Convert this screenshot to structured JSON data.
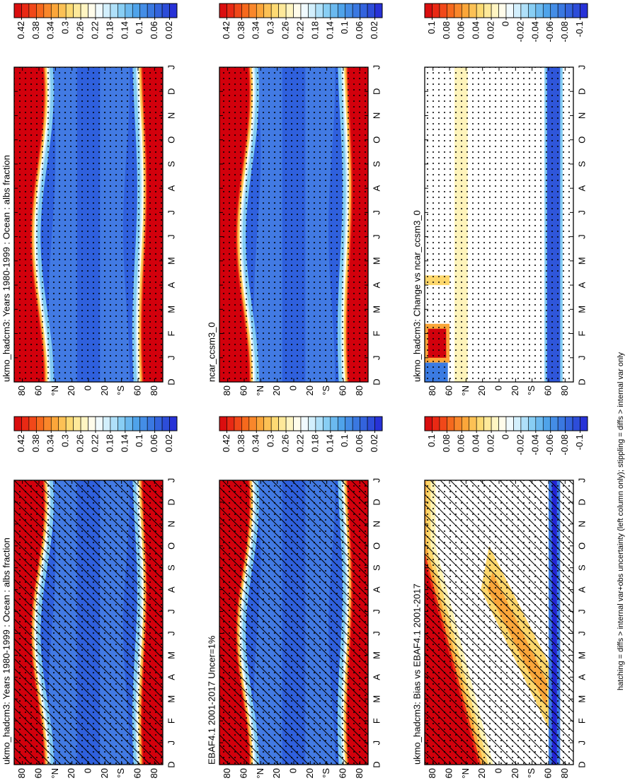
{
  "chart_data": [
    {
      "type": "contour",
      "title": "ukmo_hadcm3: Years 1980-1999 : Ocean : albs fraction",
      "categories": [
        "D",
        "J",
        "F",
        "M",
        "A",
        "M",
        "J",
        "J",
        "A",
        "S",
        "O",
        "N",
        "D",
        "J"
      ],
      "ylim": [
        -90,
        90
      ],
      "yticks": [
        80,
        60,
        {
          "value": 40,
          "label": "°N"
        },
        20,
        0,
        {
          "value": -20,
          "label": "20"
        },
        {
          "value": -40,
          "label": "°S"
        },
        {
          "value": -60,
          "label": "60"
        },
        {
          "value": -80,
          "label": "80"
        }
      ],
      "clim": [
        0,
        0.44
      ],
      "cticks": [
        0.42,
        0.38,
        0.34,
        0.3,
        0.26,
        0.22,
        0.18,
        0.14,
        0.1,
        0.06,
        0.02
      ],
      "hatching": false,
      "stippling": true
    },
    {
      "type": "contour",
      "title": "ncar_ccsm3_0",
      "categories": [
        "D",
        "J",
        "F",
        "M",
        "A",
        "M",
        "J",
        "J",
        "A",
        "S",
        "O",
        "N",
        "D",
        "J"
      ],
      "ylim": [
        -90,
        90
      ],
      "yticks": [
        80,
        60,
        {
          "value": 40,
          "label": "°N"
        },
        20,
        0,
        {
          "value": -20,
          "label": "20"
        },
        {
          "value": -40,
          "label": "°S"
        },
        {
          "value": -60,
          "label": "60"
        },
        {
          "value": -80,
          "label": "80"
        }
      ],
      "clim": [
        0,
        0.44
      ],
      "cticks": [
        0.42,
        0.38,
        0.34,
        0.3,
        0.26,
        0.22,
        0.18,
        0.14,
        0.1,
        0.06,
        0.02
      ],
      "hatching": false,
      "stippling": true
    },
    {
      "type": "contour",
      "title": "ukmo_hadcm3: Change vs ncar_ccsm3_0",
      "categories": [
        "D",
        "J",
        "F",
        "M",
        "A",
        "M",
        "J",
        "J",
        "A",
        "S",
        "O",
        "N",
        "D",
        "J"
      ],
      "ylim": [
        -90,
        90
      ],
      "yticks": [
        80,
        60,
        {
          "value": 40,
          "label": "°N"
        },
        20,
        0,
        {
          "value": -20,
          "label": "20"
        },
        {
          "value": -40,
          "label": "°S"
        },
        {
          "value": -60,
          "label": "60"
        },
        {
          "value": -80,
          "label": "80"
        }
      ],
      "clim": [
        -0.11,
        0.11
      ],
      "cticks": [
        0.1,
        0.08,
        0.06,
        0.04,
        0.02,
        0,
        -0.02,
        -0.04,
        -0.06,
        -0.08,
        -0.1
      ],
      "hatching": false,
      "stippling": true
    },
    {
      "type": "contour",
      "title": "ukmo_hadcm3: Years 1980-1999 : Ocean : albs fraction",
      "categories": [
        "D",
        "J",
        "F",
        "M",
        "A",
        "M",
        "J",
        "J",
        "A",
        "S",
        "O",
        "N",
        "D",
        "J"
      ],
      "ylim": [
        -90,
        90
      ],
      "yticks": [
        80,
        60,
        {
          "value": 40,
          "label": "°N"
        },
        20,
        0,
        {
          "value": -20,
          "label": "20"
        },
        {
          "value": -40,
          "label": "°S"
        },
        {
          "value": -60,
          "label": "60"
        },
        {
          "value": -80,
          "label": "80"
        }
      ],
      "clim": [
        0,
        0.44
      ],
      "cticks": [
        0.42,
        0.38,
        0.34,
        0.3,
        0.26,
        0.22,
        0.18,
        0.14,
        0.1,
        0.06,
        0.02
      ],
      "hatching": true,
      "stippling": true
    },
    {
      "type": "contour",
      "title": "EBAF4.1 2001-2017 Uncer=1%",
      "categories": [
        "D",
        "J",
        "F",
        "M",
        "A",
        "M",
        "J",
        "J",
        "A",
        "S",
        "O",
        "N",
        "D",
        "J"
      ],
      "ylim": [
        -90,
        90
      ],
      "yticks": [
        80,
        60,
        {
          "value": 40,
          "label": "°N"
        },
        20,
        0,
        {
          "value": -20,
          "label": "20"
        },
        {
          "value": -40,
          "label": "°S"
        },
        {
          "value": -60,
          "label": "60"
        },
        {
          "value": -80,
          "label": "80"
        }
      ],
      "clim": [
        0,
        0.44
      ],
      "cticks": [
        0.42,
        0.38,
        0.34,
        0.3,
        0.26,
        0.22,
        0.18,
        0.14,
        0.1,
        0.06,
        0.02
      ],
      "hatching": true,
      "stippling": true
    },
    {
      "type": "contour",
      "title": "ukmo_hadcm3: Bias vs EBAF4.1 2001-2017",
      "categories": [
        "D",
        "J",
        "F",
        "M",
        "A",
        "M",
        "J",
        "J",
        "A",
        "S",
        "O",
        "N",
        "D",
        "J"
      ],
      "ylim": [
        -90,
        90
      ],
      "yticks": [
        80,
        60,
        {
          "value": 40,
          "label": "°N"
        },
        20,
        0,
        {
          "value": -20,
          "label": "20"
        },
        {
          "value": -40,
          "label": "°S"
        },
        {
          "value": -60,
          "label": "60"
        },
        {
          "value": -80,
          "label": "80"
        }
      ],
      "clim": [
        -0.11,
        0.11
      ],
      "cticks": [
        0.1,
        0.08,
        0.06,
        0.04,
        0.02,
        0,
        -0.02,
        -0.04,
        -0.06,
        -0.08,
        -0.1
      ],
      "hatching": true,
      "stippling": true
    }
  ],
  "note": "hatching = diffs > internal var+obs uncertainty (left column only); stippling = diffs > internal var only"
}
